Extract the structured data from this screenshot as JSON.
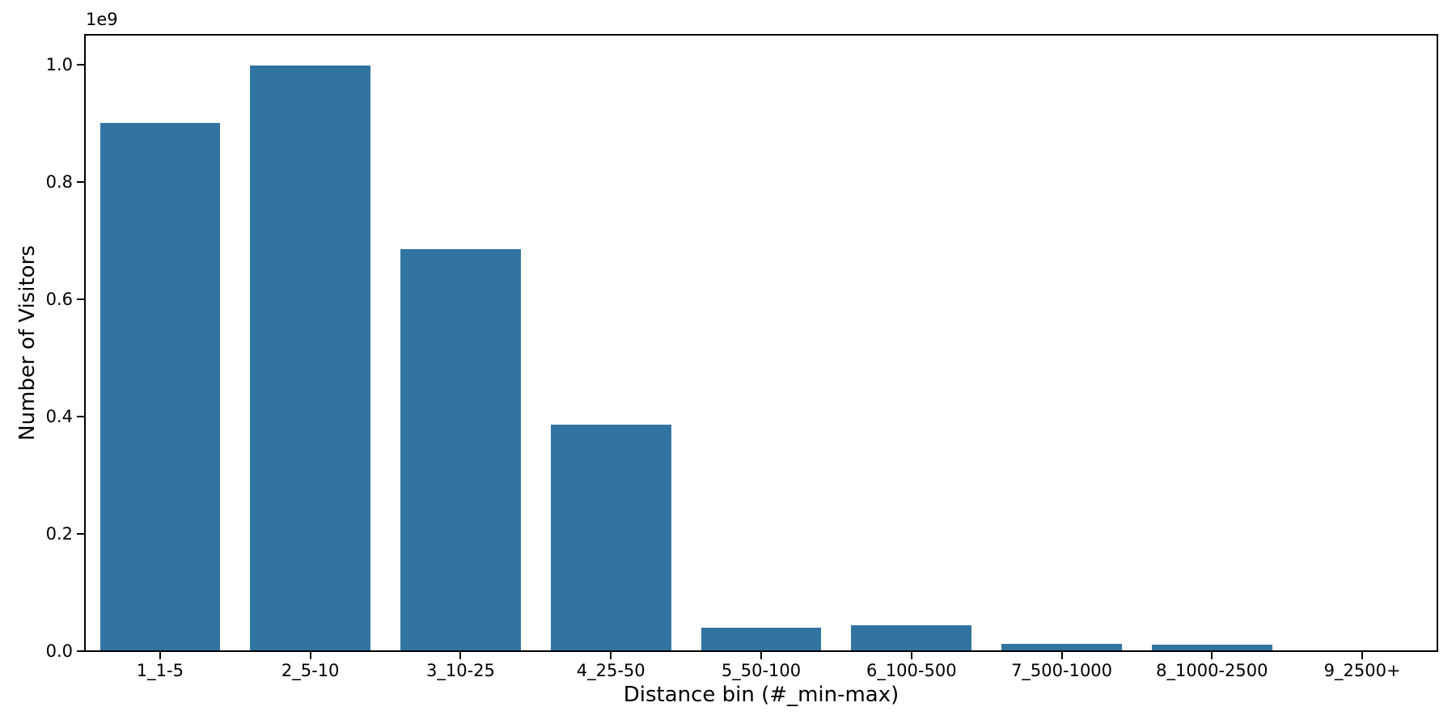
{
  "figure": {
    "background_color": "#ffffff",
    "text_color": "#000000"
  },
  "chart_data": {
    "type": "bar",
    "title": "",
    "xlabel": "Distance bin (#_min-max)",
    "ylabel": "Number of Visitors",
    "y_offset_text": "1e9",
    "categories": [
      "1_1-5",
      "2_5-10",
      "3_10-25",
      "4_25-50",
      "5_50-100",
      "6_100-500",
      "7_500-1000",
      "8_1000-2500",
      "9_2500+"
    ],
    "values": [
      900000000,
      998000000,
      685000000,
      386000000,
      40000000,
      44000000,
      12000000,
      11000000,
      2000000
    ],
    "yticks": [
      {
        "label": "0.0",
        "value": 0
      },
      {
        "label": "0.2",
        "value": 200000000
      },
      {
        "label": "0.4",
        "value": 400000000
      },
      {
        "label": "0.6",
        "value": 600000000
      },
      {
        "label": "0.8",
        "value": 800000000
      },
      {
        "label": "1.0",
        "value": 1000000000
      }
    ],
    "ylim": [
      0,
      1051000000
    ],
    "bar_color": "#3274a1",
    "axis_color": "#000000",
    "bar_width_fraction": 0.8,
    "grid": false,
    "legend_position": "none"
  }
}
